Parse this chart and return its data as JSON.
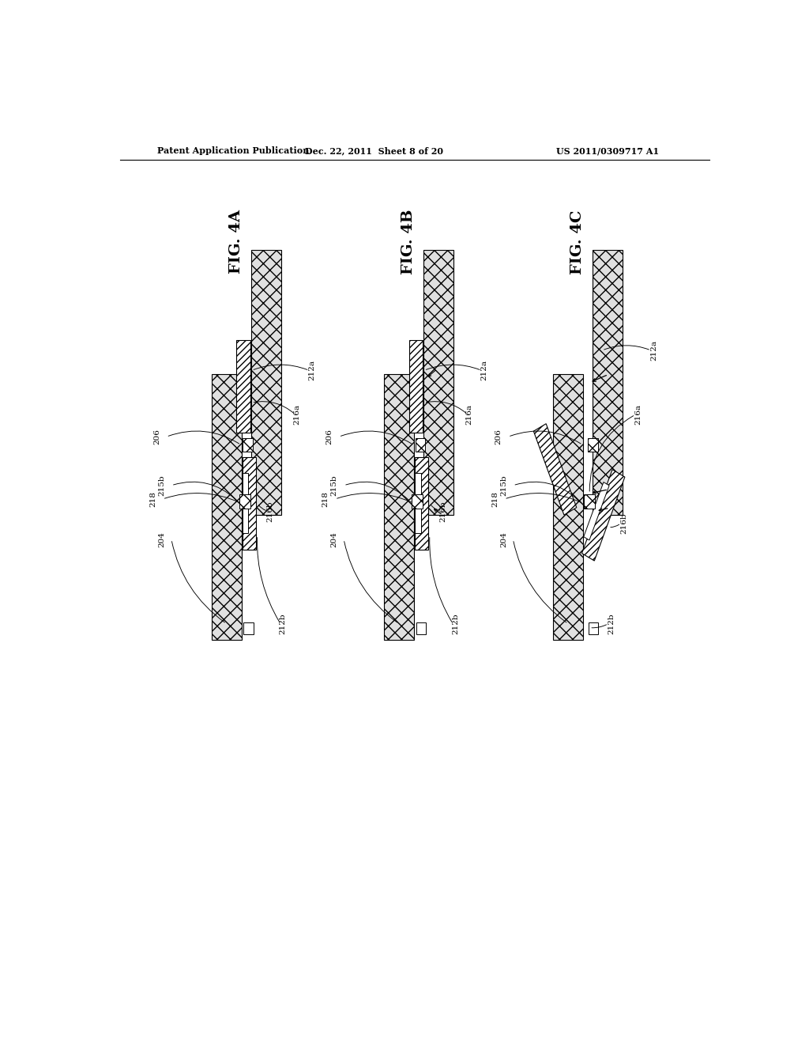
{
  "bg_color": "#ffffff",
  "header_left": "Patent Application Publication",
  "header_mid": "Dec. 22, 2011  Sheet 8 of 20",
  "header_right": "US 2011/0309717 A1",
  "fig_titles": [
    "FIG. 4A",
    "FIG. 4B",
    "FIG. 4C"
  ],
  "label_fontsize": 7.5,
  "fig_title_fontsize": 14
}
